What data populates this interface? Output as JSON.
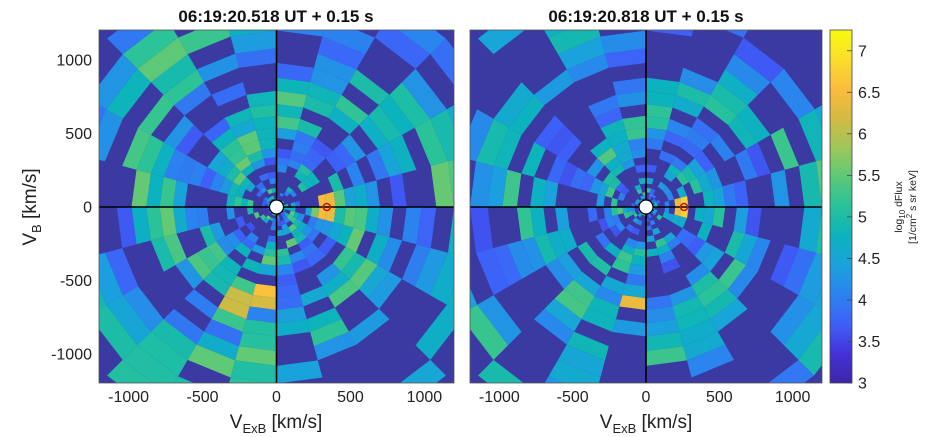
{
  "colors": {
    "background": "#3b3aa2",
    "colormap": [
      "#3e26a8",
      "#4431d8",
      "#3e60f8",
      "#2b83ef",
      "#1aa2dc",
      "#0bb3bd",
      "#28c29a",
      "#5bc978",
      "#9fc65a",
      "#d4ba42",
      "#fbbc3d",
      "#fbdd2b",
      "#f9fb0e"
    ],
    "crosshair": "#000000",
    "marker": "#cc1111"
  },
  "chart_data": [
    {
      "type": "heatmap",
      "title": "06:19:20.518 UT + 0.15 s",
      "xlabel": "V_ExB [km/s]",
      "ylabel": "V_B [km/s]",
      "xlim": [
        -1200,
        1200
      ],
      "ylim": [
        -1200,
        1200
      ],
      "xticks": [
        -1000,
        -500,
        0,
        500,
        1000
      ],
      "yticks": [
        -1000,
        -500,
        0,
        500,
        1000
      ],
      "projection": "polar velocity bins, log10 dFlux per bin",
      "peak": {
        "vx": 340,
        "vb": 0,
        "log10_dflux": 7.0
      },
      "grid": false
    },
    {
      "type": "heatmap",
      "title": "06:19:20.818 UT + 0.15 s",
      "xlabel": "V_ExB [km/s]",
      "ylabel": "",
      "xlim": [
        -1200,
        1200
      ],
      "ylim": [
        -1200,
        1200
      ],
      "xticks": [
        -1000,
        -500,
        0,
        500,
        1000
      ],
      "projection": "polar velocity bins, log10 dFlux per bin",
      "peak": {
        "vx": 260,
        "vb": 0,
        "log10_dflux": 7.1
      },
      "grid": false
    }
  ],
  "colorbar": {
    "range": [
      3,
      7.25
    ],
    "ticks": [
      "3",
      "3.5",
      "4",
      "4.5",
      "5",
      "5.5",
      "6",
      "6.5",
      "7"
    ],
    "label": "log10 dFlux [1/cm2 s sr keV]"
  }
}
